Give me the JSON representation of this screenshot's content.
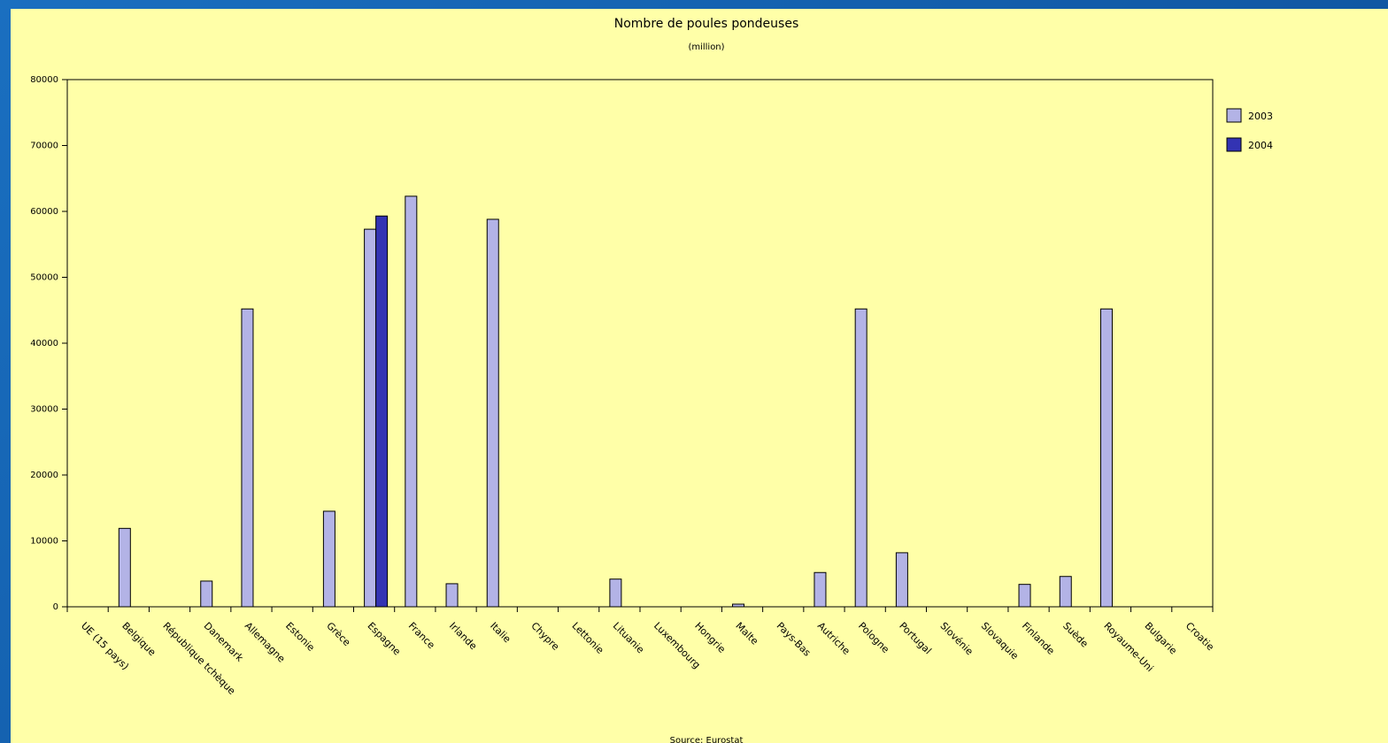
{
  "chart_data": {
    "type": "bar",
    "title": "Nombre de poules pondeuses",
    "subtitle": "(million)",
    "source": "Source: Eurostat",
    "categories": [
      "UE (15 pays)",
      "Belgique",
      "République tchèque",
      "Danemark",
      "Allemagne",
      "Estonie",
      "Grèce",
      "Espagne",
      "France",
      "Irlande",
      "Italie",
      "Chypre",
      "Lettonie",
      "Lituanie",
      "Luxembourg",
      "Hongrie",
      "Malte",
      "Pays-Bas",
      "Autriche",
      "Pologne",
      "Portugal",
      "Slovénie",
      "Slovaquie",
      "Finlande",
      "Suède",
      "Royaume-Uni",
      "Bulgarie",
      "Croatie"
    ],
    "series": [
      {
        "name": "2003",
        "color": "#b3b3e6",
        "values": [
          null,
          11900,
          null,
          3900,
          45200,
          null,
          14500,
          57300,
          62300,
          3500,
          58800,
          null,
          null,
          4200,
          null,
          null,
          400,
          null,
          5200,
          45200,
          8200,
          null,
          null,
          3400,
          4600,
          45200,
          null,
          null
        ]
      },
      {
        "name": "2004",
        "color": "#3333b3",
        "values": [
          null,
          null,
          null,
          null,
          null,
          null,
          null,
          59300,
          null,
          null,
          null,
          null,
          null,
          null,
          null,
          null,
          null,
          null,
          null,
          null,
          null,
          null,
          null,
          null,
          null,
          null,
          null,
          null
        ]
      }
    ],
    "ylim": [
      0,
      80000
    ],
    "yticks": [
      0,
      10000,
      20000,
      30000,
      40000,
      50000,
      60000,
      70000,
      80000
    ],
    "legend": "right"
  }
}
